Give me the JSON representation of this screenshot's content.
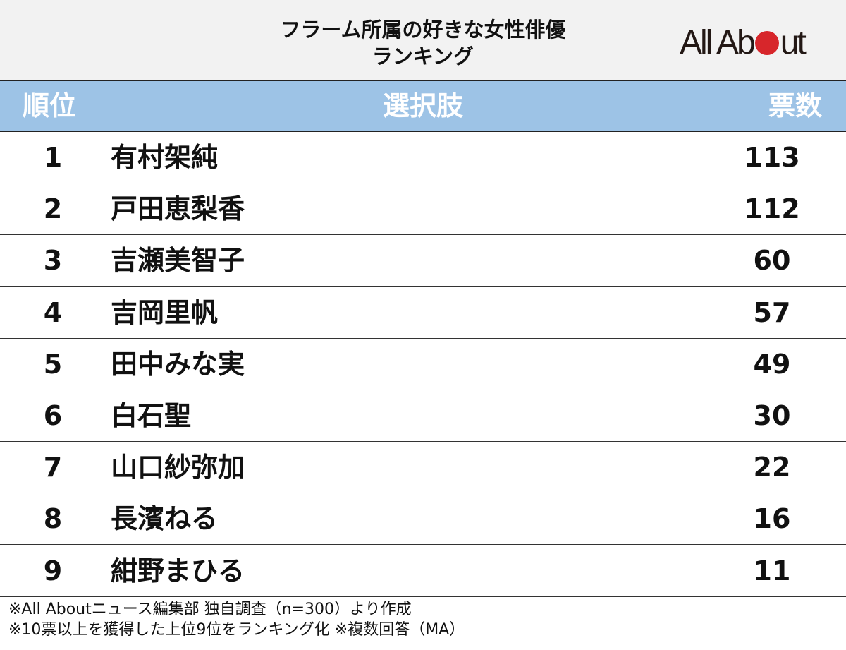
{
  "title": {
    "line1": "フラーム所属の好きな女性俳優",
    "line2": "ランキング"
  },
  "logo": {
    "text_left": "All Ab",
    "text_right": "ut",
    "full": "All About",
    "dot_color": "#d7262b"
  },
  "header": {
    "rank": "順位",
    "choice": "選択肢",
    "votes": "票数",
    "bg_color": "#9dc3e6"
  },
  "rows": [
    {
      "rank": "1",
      "name": "有村架純",
      "votes": "113"
    },
    {
      "rank": "2",
      "name": "戸田恵梨香",
      "votes": "112"
    },
    {
      "rank": "3",
      "name": "吉瀬美智子",
      "votes": "60"
    },
    {
      "rank": "4",
      "name": "吉岡里帆",
      "votes": "57"
    },
    {
      "rank": "5",
      "name": "田中みな実",
      "votes": "49"
    },
    {
      "rank": "6",
      "name": "白石聖",
      "votes": "30"
    },
    {
      "rank": "7",
      "name": "山口紗弥加",
      "votes": "22"
    },
    {
      "rank": "8",
      "name": "長濱ねる",
      "votes": "16"
    },
    {
      "rank": "9",
      "name": "紺野まひる",
      "votes": "11"
    }
  ],
  "footnotes": [
    "※All Aboutニュース編集部 独自調査（n=300）より作成",
    "※10票以上を獲得した上位9位をランキング化 ※複数回答（MA）"
  ]
}
